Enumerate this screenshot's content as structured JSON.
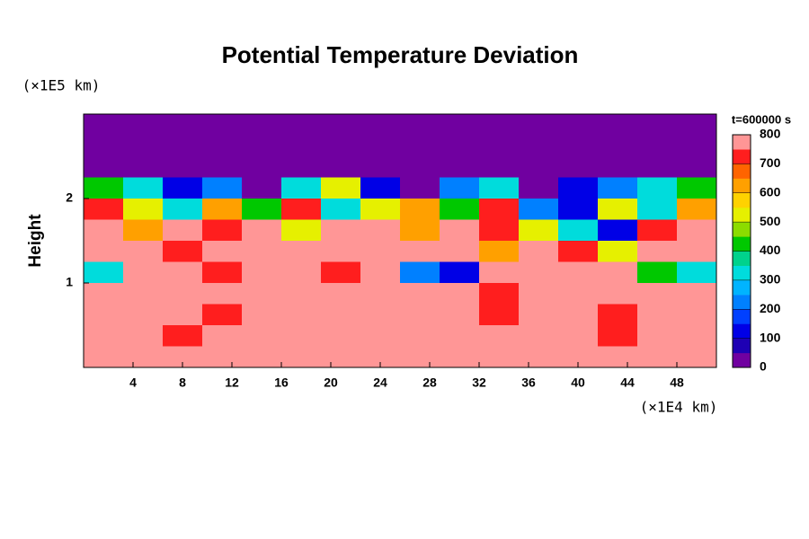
{
  "chart_data": {
    "type": "heatmap",
    "title": "Potential Temperature Deviation",
    "y_label": "Height",
    "y_unit": "(×1E5 km)",
    "x_unit": "(×1E4 km)",
    "colorbar_title": "t=600000 s",
    "xlim": [
      0,
      51.2
    ],
    "xticks": [
      4,
      8,
      12,
      16,
      20,
      24,
      28,
      32,
      36,
      40,
      44,
      48
    ],
    "ylim": [
      0,
      3
    ],
    "yticks": [
      1,
      2
    ],
    "x": [
      1.6,
      4.8,
      8,
      11.2,
      14.4,
      17.6,
      20.8,
      24,
      27.2,
      30.4,
      33.6,
      36.8,
      40,
      43.2,
      46.4,
      49.6
    ],
    "y": [
      2.875,
      2.625,
      2.375,
      2.125,
      1.875,
      1.625,
      1.375,
      1.125,
      0.875,
      0.625,
      0.375,
      0.125
    ],
    "z": [
      [
        0,
        0,
        0,
        0,
        0,
        0,
        0,
        0,
        0,
        0,
        0,
        0,
        0,
        0,
        0,
        0
      ],
      [
        0,
        0,
        0,
        0,
        0,
        0,
        0,
        0,
        0,
        0,
        0,
        0,
        0,
        0,
        0,
        0
      ],
      [
        0,
        0,
        0,
        0,
        0,
        0,
        0,
        0,
        0,
        0,
        0,
        0,
        0,
        0,
        0,
        0
      ],
      [
        400,
        300,
        100,
        200,
        0,
        300,
        500,
        100,
        0,
        200,
        300,
        0,
        100,
        200,
        300,
        400
      ],
      [
        700,
        500,
        300,
        600,
        400,
        700,
        300,
        500,
        600,
        400,
        700,
        200,
        100,
        500,
        300,
        600
      ],
      [
        800,
        600,
        800,
        700,
        800,
        500,
        800,
        800,
        600,
        800,
        700,
        500,
        300,
        100,
        700,
        800
      ],
      [
        800,
        800,
        700,
        800,
        800,
        800,
        800,
        800,
        800,
        800,
        600,
        800,
        700,
        500,
        800,
        800
      ],
      [
        300,
        800,
        800,
        700,
        800,
        800,
        700,
        800,
        200,
        100,
        800,
        800,
        800,
        800,
        400,
        300
      ],
      [
        800,
        800,
        800,
        750,
        800,
        800,
        800,
        800,
        800,
        800,
        700,
        800,
        800,
        800,
        800,
        800
      ],
      [
        800,
        800,
        750,
        700,
        800,
        800,
        800,
        800,
        800,
        800,
        700,
        750,
        800,
        700,
        800,
        800
      ],
      [
        800,
        750,
        700,
        800,
        800,
        800,
        800,
        800,
        800,
        800,
        750,
        800,
        800,
        700,
        800,
        800
      ],
      [
        800,
        800,
        800,
        800,
        800,
        800,
        800,
        800,
        800,
        800,
        800,
        800,
        800,
        800,
        800,
        800
      ]
    ],
    "clim": [
      0,
      800
    ],
    "cticks": [
      0,
      100,
      200,
      300,
      400,
      500,
      600,
      700,
      800
    ],
    "colormap": [
      "#7000a0",
      "#1e00b4",
      "#0000e6",
      "#0040ff",
      "#0080ff",
      "#00b4ff",
      "#00dcdc",
      "#00d28c",
      "#00c800",
      "#8cdc00",
      "#e6f000",
      "#ffd200",
      "#ffa000",
      "#ff6400",
      "#ff1e1e",
      "#ff9696"
    ]
  }
}
